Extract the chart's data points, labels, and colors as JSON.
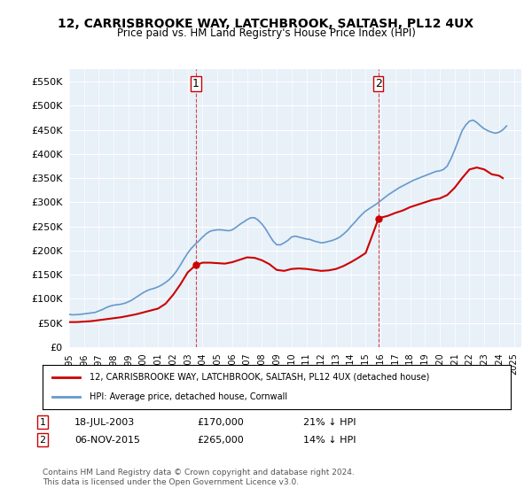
{
  "title": "12, CARRISBROOKE WAY, LATCHBROOK, SALTASH, PL12 4UX",
  "subtitle": "Price paid vs. HM Land Registry's House Price Index (HPI)",
  "legend_line1": "12, CARRISBROOKE WAY, LATCHBROOK, SALTASH, PL12 4UX (detached house)",
  "legend_line2": "HPI: Average price, detached house, Cornwall",
  "footnote": "Contains HM Land Registry data © Crown copyright and database right 2024.\nThis data is licensed under the Open Government Licence v3.0.",
  "transaction1_date": "18-JUL-2003",
  "transaction1_price": 170000,
  "transaction1_hpi_diff": "21% ↓ HPI",
  "transaction1_x": 2003.54,
  "transaction2_date": "06-NOV-2015",
  "transaction2_price": 265000,
  "transaction2_hpi_diff": "14% ↓ HPI",
  "transaction2_x": 2015.85,
  "ylim": [
    0,
    575000
  ],
  "xlim_start": 1995.0,
  "xlim_end": 2025.5,
  "red_color": "#cc0000",
  "blue_color": "#6699cc",
  "dashed_color": "#cc0000",
  "bg_color": "#e8f0f8",
  "plot_bg": "#ffffff",
  "hpi_data_x": [
    1995.0,
    1995.25,
    1995.5,
    1995.75,
    1996.0,
    1996.25,
    1996.5,
    1996.75,
    1997.0,
    1997.25,
    1997.5,
    1997.75,
    1998.0,
    1998.25,
    1998.5,
    1998.75,
    1999.0,
    1999.25,
    1999.5,
    1999.75,
    2000.0,
    2000.25,
    2000.5,
    2000.75,
    2001.0,
    2001.25,
    2001.5,
    2001.75,
    2002.0,
    2002.25,
    2002.5,
    2002.75,
    2003.0,
    2003.25,
    2003.5,
    2003.75,
    2004.0,
    2004.25,
    2004.5,
    2004.75,
    2005.0,
    2005.25,
    2005.5,
    2005.75,
    2006.0,
    2006.25,
    2006.5,
    2006.75,
    2007.0,
    2007.25,
    2007.5,
    2007.75,
    2008.0,
    2008.25,
    2008.5,
    2008.75,
    2009.0,
    2009.25,
    2009.5,
    2009.75,
    2010.0,
    2010.25,
    2010.5,
    2010.75,
    2011.0,
    2011.25,
    2011.5,
    2011.75,
    2012.0,
    2012.25,
    2012.5,
    2012.75,
    2013.0,
    2013.25,
    2013.5,
    2013.75,
    2014.0,
    2014.25,
    2014.5,
    2014.75,
    2015.0,
    2015.25,
    2015.5,
    2015.75,
    2016.0,
    2016.25,
    2016.5,
    2016.75,
    2017.0,
    2017.25,
    2017.5,
    2017.75,
    2018.0,
    2018.25,
    2018.5,
    2018.75,
    2019.0,
    2019.25,
    2019.5,
    2019.75,
    2020.0,
    2020.25,
    2020.5,
    2020.75,
    2021.0,
    2021.25,
    2021.5,
    2021.75,
    2022.0,
    2022.25,
    2022.5,
    2022.75,
    2023.0,
    2023.25,
    2023.5,
    2023.75,
    2024.0,
    2024.25,
    2024.5
  ],
  "hpi_data_y": [
    68000,
    67000,
    67500,
    68000,
    69000,
    70000,
    71000,
    72000,
    75000,
    78000,
    82000,
    85000,
    87000,
    88000,
    89000,
    91000,
    94000,
    98000,
    103000,
    108000,
    113000,
    117000,
    120000,
    122000,
    125000,
    129000,
    134000,
    140000,
    148000,
    158000,
    170000,
    183000,
    195000,
    205000,
    213000,
    220000,
    228000,
    235000,
    240000,
    242000,
    243000,
    243000,
    242000,
    241000,
    243000,
    248000,
    254000,
    259000,
    264000,
    268000,
    268000,
    263000,
    255000,
    245000,
    232000,
    220000,
    212000,
    212000,
    216000,
    221000,
    228000,
    230000,
    228000,
    226000,
    224000,
    223000,
    220000,
    218000,
    216000,
    217000,
    219000,
    221000,
    224000,
    228000,
    234000,
    241000,
    250000,
    258000,
    267000,
    275000,
    282000,
    287000,
    292000,
    297000,
    303000,
    309000,
    315000,
    320000,
    325000,
    330000,
    334000,
    338000,
    342000,
    346000,
    349000,
    352000,
    355000,
    358000,
    361000,
    364000,
    365000,
    368000,
    375000,
    390000,
    408000,
    428000,
    448000,
    460000,
    468000,
    470000,
    465000,
    458000,
    452000,
    448000,
    445000,
    443000,
    445000,
    450000,
    458000
  ],
  "price_data_x": [
    1995.0,
    1995.5,
    1996.0,
    1996.5,
    1997.0,
    1997.5,
    1998.0,
    1998.5,
    1999.0,
    1999.5,
    2000.0,
    2000.5,
    2001.0,
    2001.5,
    2002.0,
    2002.5,
    2003.0,
    2003.54,
    2004.0,
    2004.5,
    2005.0,
    2005.5,
    2006.0,
    2006.5,
    2007.0,
    2007.5,
    2008.0,
    2008.5,
    2009.0,
    2009.5,
    2010.0,
    2010.5,
    2011.0,
    2011.5,
    2012.0,
    2012.5,
    2013.0,
    2013.5,
    2014.0,
    2014.5,
    2015.0,
    2015.85,
    2016.0,
    2016.5,
    2017.0,
    2017.5,
    2018.0,
    2018.5,
    2019.0,
    2019.5,
    2020.0,
    2020.5,
    2021.0,
    2021.5,
    2022.0,
    2022.5,
    2023.0,
    2023.5,
    2024.0,
    2024.25
  ],
  "price_data_y": [
    52000,
    52000,
    53000,
    54000,
    56000,
    58000,
    60000,
    62000,
    65000,
    68000,
    72000,
    76000,
    80000,
    90000,
    108000,
    130000,
    155000,
    170000,
    175000,
    175000,
    174000,
    173000,
    176000,
    181000,
    186000,
    185000,
    180000,
    172000,
    160000,
    158000,
    162000,
    163000,
    162000,
    160000,
    158000,
    159000,
    162000,
    168000,
    176000,
    185000,
    195000,
    265000,
    268000,
    272000,
    278000,
    283000,
    290000,
    295000,
    300000,
    305000,
    308000,
    315000,
    330000,
    350000,
    368000,
    372000,
    368000,
    358000,
    355000,
    350000
  ]
}
